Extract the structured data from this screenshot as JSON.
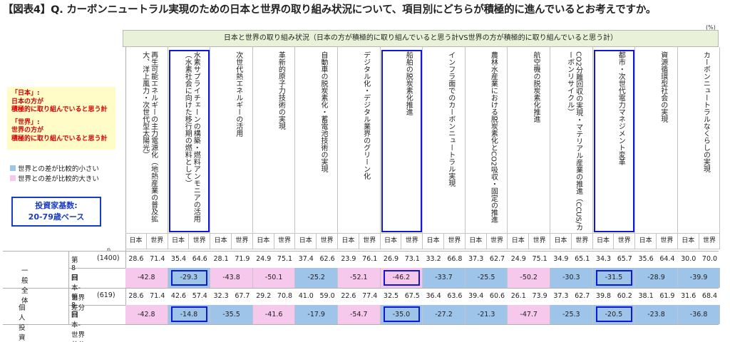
{
  "title": "【図表4】Q. カーボンニュートラル実現のための日本と世界の取り組み状況について、項目別にどちらが積極的に進んでいるとお考えですか。",
  "unit": "(%)",
  "notes": {
    "japan_head": "「日本」:",
    "japan_line1": "日本の方が",
    "japan_line2": "積極的に取り組んでいると思う計",
    "world_head": "「世界」:",
    "world_line1": "世界の方が",
    "world_line2": "積極的に取り組んでいると思う計"
  },
  "legend": {
    "small": "世界との差が比較的小さい",
    "large": "世界との差が比較的大きい",
    "small_color": "#9fc4ea",
    "large_color": "#f6c8ec"
  },
  "base": {
    "line1": "投資家基数:",
    "line2": "20-79歳ベース"
  },
  "n_label": "n",
  "header_band": "日本と世界の取り組み状況（日本の方が積極的に取り組んでいると思う計VS世界の方が積極的に取り組んでいると思う計）",
  "sub_japan": "日本",
  "sub_world": "世界",
  "rows": {
    "group1": "一般全体",
    "group2": "個人投資家",
    "wave": "第8回",
    "n1": "(1400)",
    "n2": "(619)",
    "diff_label": "日本-世界　差分"
  },
  "highlight_color": "#1018d8",
  "chart_data": {
    "type": "table",
    "title": "【図表4】Q. カーボンニュートラル実現のための日本と世界の取り組み状況について、項目別にどちらが積極的に進んでいるとお考えですか。",
    "unit": "(%)",
    "items": [
      "再生可能エネルギーの主力電源化（地熱産業の普及拡大、洋上風力・次世代型太陽光）",
      "水素サプライチェーンの構築・燃料アンモニアの活用（水素社会に向けた移行期の燃料として）",
      "次世代熱エネルギーの活用",
      "革新的原子力技術の実現",
      "自動車の脱炭素化・蓄電池技術の実現",
      "デジタル化・デジタル業界のグリーン化",
      "船舶の脱炭素化推進",
      "インフラ面でのカーボンニュートラル実現",
      "農林水産業における脱炭素化とCO2吸収・固定の推進",
      "航空機の脱炭素化推進",
      "CO2分離回収の実現・マテリアル産業の推進（CCUS/カーボンリサイクル）",
      "都市・次世代電力マネジメント変革",
      "資源循環型社会の実現",
      "カーボンニュートラルなくらしの実現"
    ],
    "series": [
      {
        "name": "一般全体",
        "n": "(1400)",
        "japan": [
          28.6,
          35.4,
          28.1,
          24.9,
          37.4,
          23.9,
          26.9,
          33.2,
          37.3,
          24.9,
          34.9,
          34.3,
          35.6,
          30.0
        ],
        "world": [
          71.4,
          64.6,
          71.9,
          75.1,
          62.6,
          76.1,
          73.1,
          66.8,
          62.7,
          75.1,
          65.1,
          65.7,
          64.4,
          70.0
        ],
        "diff": [
          -42.8,
          -29.3,
          -43.8,
          -50.1,
          -25.2,
          -52.1,
          -46.2,
          -33.7,
          -25.5,
          -50.2,
          -30.3,
          -31.5,
          -28.9,
          -39.9
        ],
        "diff_shade": [
          "large",
          "small",
          "large",
          "large",
          "small",
          "large",
          "large",
          "small",
          "small",
          "large",
          "small",
          "small",
          "small",
          "small"
        ]
      },
      {
        "name": "個人投資家",
        "n": "(619)",
        "japan": [
          28.6,
          42.6,
          32.3,
          29.2,
          41.0,
          22.6,
          32.5,
          36.4,
          39.4,
          26.1,
          37.3,
          39.8,
          38.1,
          31.6
        ],
        "world": [
          71.4,
          57.4,
          67.7,
          70.8,
          59.0,
          77.4,
          67.5,
          63.6,
          60.6,
          73.9,
          62.7,
          60.2,
          61.9,
          68.4
        ],
        "diff": [
          -42.8,
          -14.8,
          -35.5,
          -41.6,
          -17.9,
          -54.7,
          -35.0,
          -27.2,
          -21.3,
          -47.7,
          -25.3,
          -20.5,
          -23.8,
          -36.8
        ],
        "diff_shade": [
          "large",
          "small",
          "small",
          "large",
          "small",
          "large",
          "small",
          "small",
          "small",
          "large",
          "small",
          "small",
          "small",
          "small"
        ]
      }
    ],
    "highlighted_items": [
      1,
      6,
      11
    ]
  }
}
